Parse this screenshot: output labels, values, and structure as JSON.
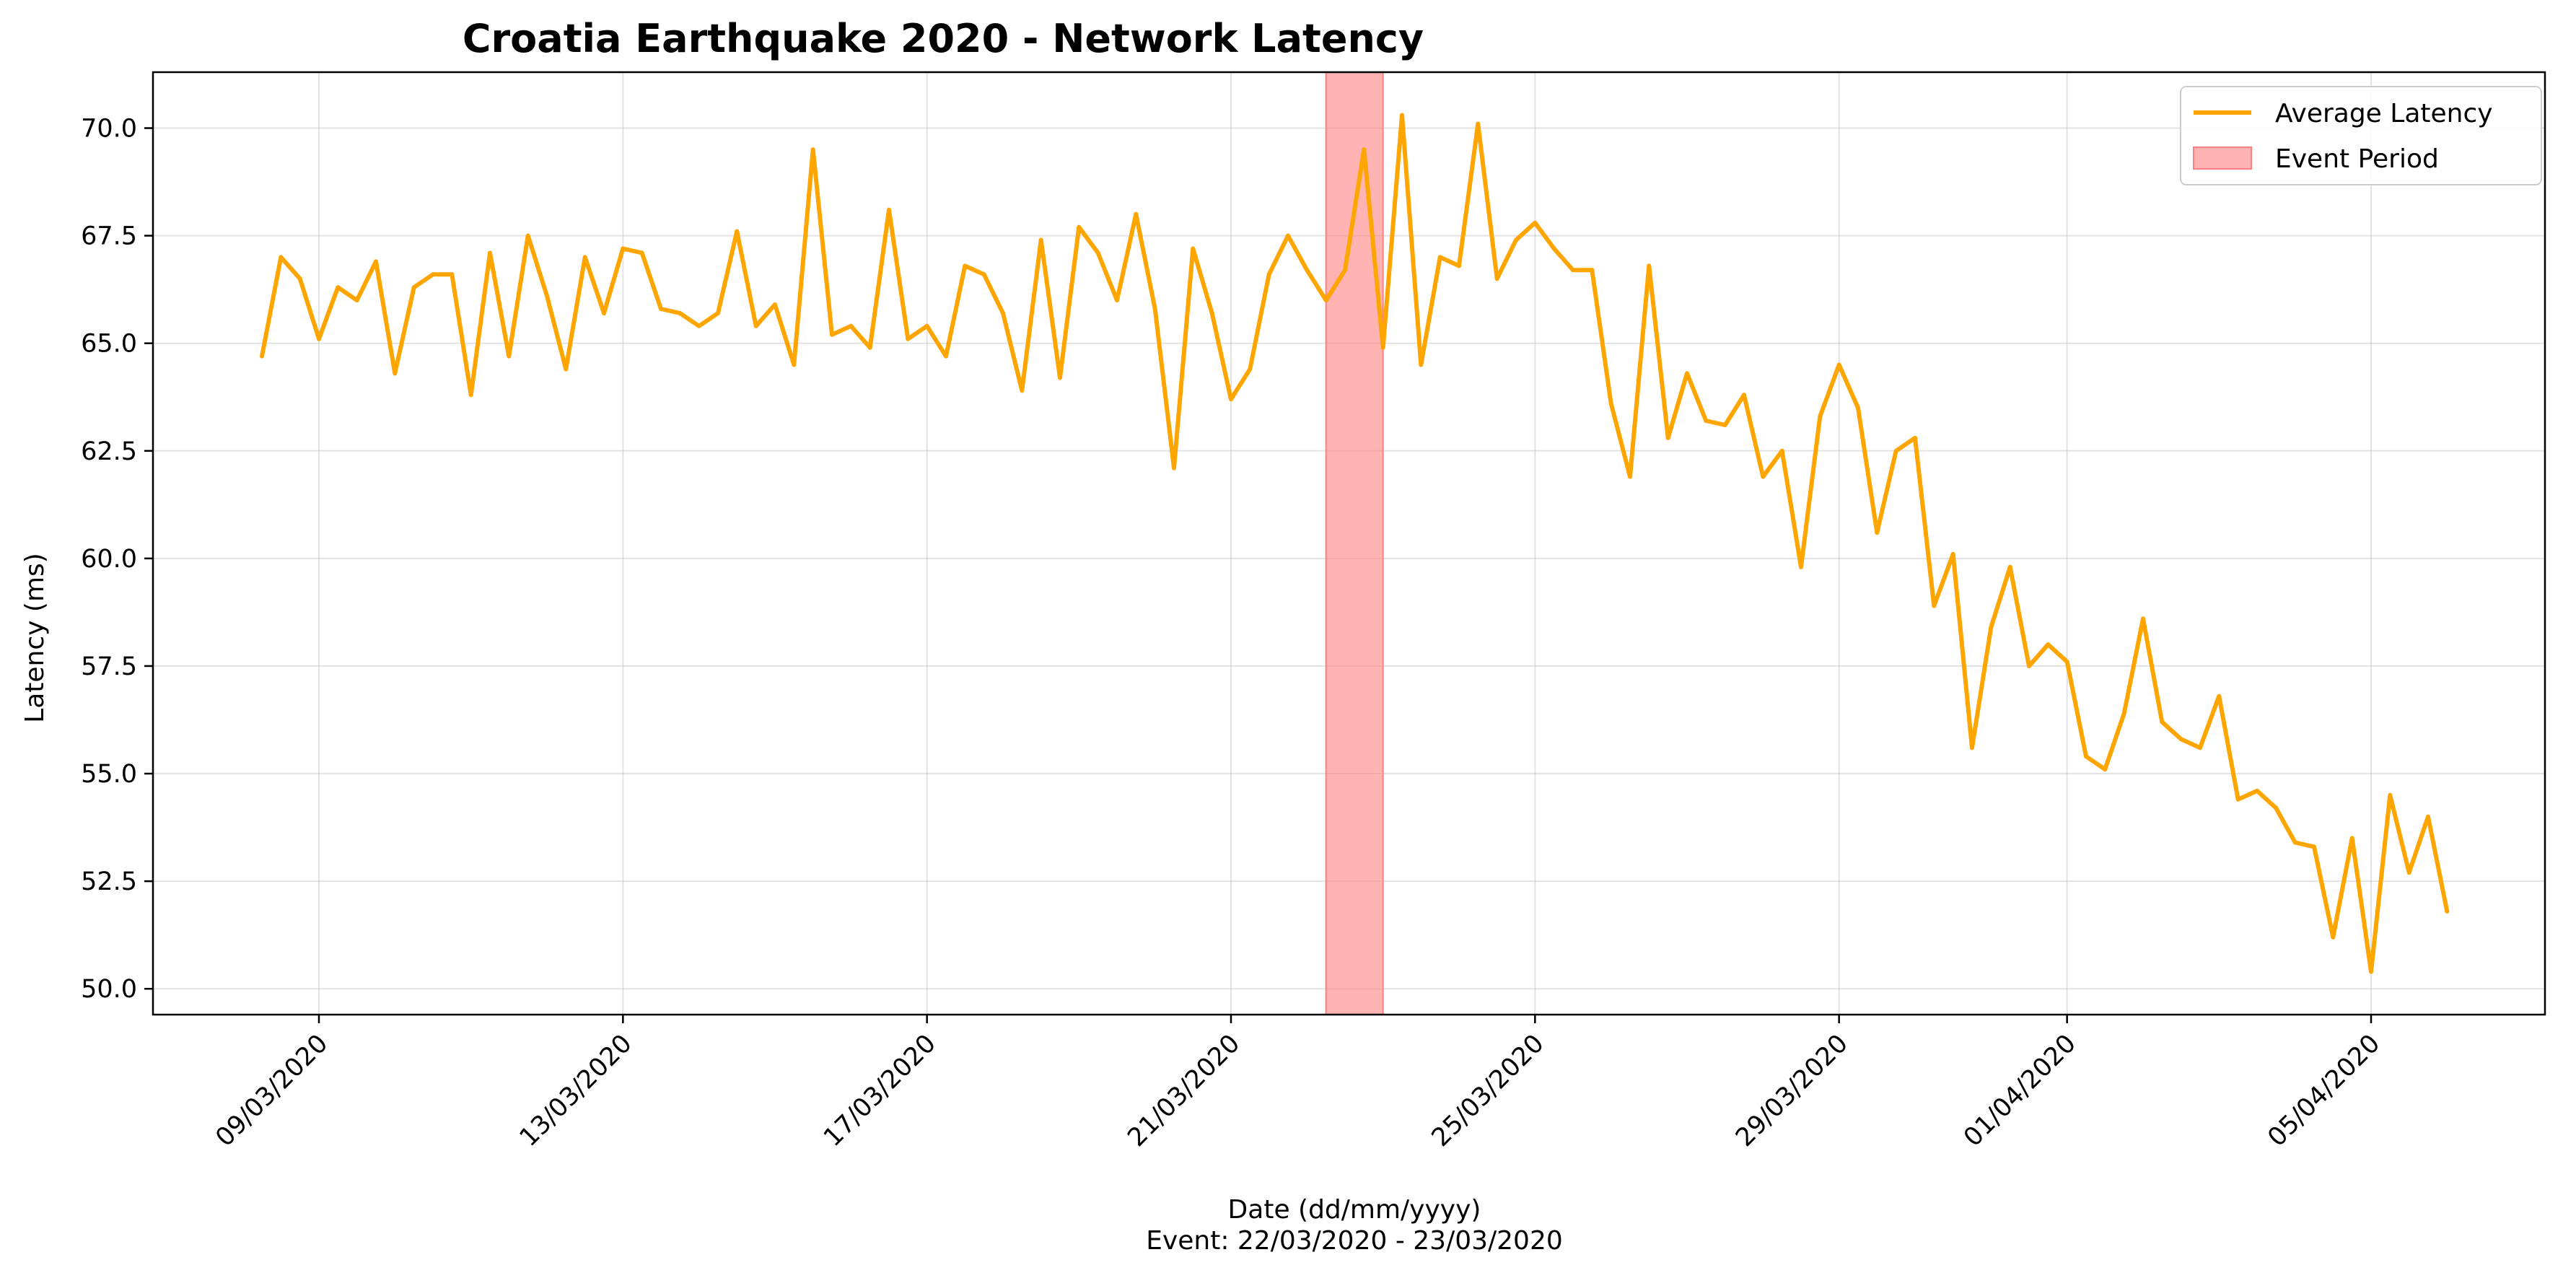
{
  "chart_data": {
    "type": "line",
    "title": "Croatia Earthquake 2020 - Network Latency",
    "xlabel": "Date (dd/mm/yyyy)",
    "xlabel_sub": "Event: 22/03/2020 - 23/03/2020",
    "ylabel": "Latency (ms)",
    "ylim": [
      49.4,
      71.3
    ],
    "y_ticks": [
      "50.0",
      "52.5",
      "55.0",
      "57.5",
      "60.0",
      "62.5",
      "65.0",
      "67.5",
      "70.0"
    ],
    "x_ticks": [
      {
        "label": "09/03/2020",
        "x": "2020-03-09"
      },
      {
        "label": "13/03/2020",
        "x": "2020-03-13"
      },
      {
        "label": "17/03/2020",
        "x": "2020-03-17"
      },
      {
        "label": "21/03/2020",
        "x": "2020-03-21"
      },
      {
        "label": "25/03/2020",
        "x": "2020-03-25"
      },
      {
        "label": "29/03/2020",
        "x": "2020-03-29"
      },
      {
        "label": "01/04/2020",
        "x": "2020-04-01"
      },
      {
        "label": "05/04/2020",
        "x": "2020-04-05"
      }
    ],
    "grid": true,
    "legend_position": "top-right",
    "legend": [
      "Average Latency",
      "Event Period"
    ],
    "colors": {
      "line": "#ffa500",
      "event": "#ff8080"
    },
    "event_period": {
      "start": "2020-03-22 06:00",
      "end": "2020-03-23 00:00"
    },
    "series": [
      {
        "name": "Average Latency",
        "points": [
          [
            "2020-03-08 06:00",
            64.7
          ],
          [
            "2020-03-08 12:00",
            67.0
          ],
          [
            "2020-03-08 18:00",
            66.5
          ],
          [
            "2020-03-09 00:00",
            65.1
          ],
          [
            "2020-03-09 06:00",
            66.3
          ],
          [
            "2020-03-09 12:00",
            66.0
          ],
          [
            "2020-03-09 18:00",
            66.9
          ],
          [
            "2020-03-10 00:00",
            64.3
          ],
          [
            "2020-03-10 06:00",
            66.3
          ],
          [
            "2020-03-10 12:00",
            66.6
          ],
          [
            "2020-03-10 18:00",
            66.6
          ],
          [
            "2020-03-11 00:00",
            63.8
          ],
          [
            "2020-03-11 06:00",
            67.1
          ],
          [
            "2020-03-11 12:00",
            64.7
          ],
          [
            "2020-03-11 18:00",
            67.5
          ],
          [
            "2020-03-12 00:00",
            66.1
          ],
          [
            "2020-03-12 06:00",
            64.4
          ],
          [
            "2020-03-12 12:00",
            67.0
          ],
          [
            "2020-03-12 18:00",
            65.7
          ],
          [
            "2020-03-13 00:00",
            67.2
          ],
          [
            "2020-03-13 06:00",
            67.1
          ],
          [
            "2020-03-13 12:00",
            65.8
          ],
          [
            "2020-03-13 18:00",
            65.7
          ],
          [
            "2020-03-14 00:00",
            65.4
          ],
          [
            "2020-03-14 06:00",
            65.7
          ],
          [
            "2020-03-14 12:00",
            67.6
          ],
          [
            "2020-03-14 18:00",
            65.4
          ],
          [
            "2020-03-15 00:00",
            65.9
          ],
          [
            "2020-03-15 06:00",
            64.5
          ],
          [
            "2020-03-15 12:00",
            69.5
          ],
          [
            "2020-03-15 18:00",
            65.2
          ],
          [
            "2020-03-16 00:00",
            65.4
          ],
          [
            "2020-03-16 06:00",
            64.9
          ],
          [
            "2020-03-16 12:00",
            68.1
          ],
          [
            "2020-03-16 18:00",
            65.1
          ],
          [
            "2020-03-17 00:00",
            65.4
          ],
          [
            "2020-03-17 06:00",
            64.7
          ],
          [
            "2020-03-17 12:00",
            66.8
          ],
          [
            "2020-03-17 18:00",
            66.6
          ],
          [
            "2020-03-18 00:00",
            65.7
          ],
          [
            "2020-03-18 06:00",
            63.9
          ],
          [
            "2020-03-18 12:00",
            67.4
          ],
          [
            "2020-03-18 18:00",
            64.2
          ],
          [
            "2020-03-19 00:00",
            67.7
          ],
          [
            "2020-03-19 06:00",
            67.1
          ],
          [
            "2020-03-19 12:00",
            66.0
          ],
          [
            "2020-03-19 18:00",
            68.0
          ],
          [
            "2020-03-20 00:00",
            65.8
          ],
          [
            "2020-03-20 06:00",
            62.1
          ],
          [
            "2020-03-20 12:00",
            67.2
          ],
          [
            "2020-03-20 18:00",
            65.7
          ],
          [
            "2020-03-21 00:00",
            63.7
          ],
          [
            "2020-03-21 06:00",
            64.4
          ],
          [
            "2020-03-21 12:00",
            66.6
          ],
          [
            "2020-03-21 18:00",
            67.5
          ],
          [
            "2020-03-22 00:00",
            66.7
          ],
          [
            "2020-03-22 06:00",
            66.0
          ],
          [
            "2020-03-22 12:00",
            66.7
          ],
          [
            "2020-03-22 18:00",
            69.5
          ],
          [
            "2020-03-23 00:00",
            64.9
          ],
          [
            "2020-03-23 06:00",
            70.3
          ],
          [
            "2020-03-23 12:00",
            64.5
          ],
          [
            "2020-03-23 18:00",
            67.0
          ],
          [
            "2020-03-24 00:00",
            66.8
          ],
          [
            "2020-03-24 06:00",
            70.1
          ],
          [
            "2020-03-24 12:00",
            66.5
          ],
          [
            "2020-03-24 18:00",
            67.4
          ],
          [
            "2020-03-25 00:00",
            67.8
          ],
          [
            "2020-03-25 06:00",
            67.2
          ],
          [
            "2020-03-25 12:00",
            66.7
          ],
          [
            "2020-03-25 18:00",
            66.7
          ],
          [
            "2020-03-26 00:00",
            63.6
          ],
          [
            "2020-03-26 06:00",
            61.9
          ],
          [
            "2020-03-26 12:00",
            66.8
          ],
          [
            "2020-03-26 18:00",
            62.8
          ],
          [
            "2020-03-27 00:00",
            64.3
          ],
          [
            "2020-03-27 06:00",
            63.2
          ],
          [
            "2020-03-27 12:00",
            63.1
          ],
          [
            "2020-03-27 18:00",
            63.8
          ],
          [
            "2020-03-28 00:00",
            61.9
          ],
          [
            "2020-03-28 06:00",
            62.5
          ],
          [
            "2020-03-28 12:00",
            59.8
          ],
          [
            "2020-03-28 18:00",
            63.3
          ],
          [
            "2020-03-29 00:00",
            64.5
          ],
          [
            "2020-03-29 06:00",
            63.5
          ],
          [
            "2020-03-29 12:00",
            60.6
          ],
          [
            "2020-03-29 18:00",
            62.5
          ],
          [
            "2020-03-30 00:00",
            62.8
          ],
          [
            "2020-03-30 06:00",
            58.9
          ],
          [
            "2020-03-30 12:00",
            60.1
          ],
          [
            "2020-03-30 18:00",
            55.6
          ],
          [
            "2020-03-31 00:00",
            58.4
          ],
          [
            "2020-03-31 06:00",
            59.8
          ],
          [
            "2020-03-31 12:00",
            57.5
          ],
          [
            "2020-03-31 18:00",
            58.0
          ],
          [
            "2020-04-01 00:00",
            57.6
          ],
          [
            "2020-04-01 06:00",
            55.4
          ],
          [
            "2020-04-01 12:00",
            55.1
          ],
          [
            "2020-04-01 18:00",
            56.4
          ],
          [
            "2020-04-02 00:00",
            58.6
          ],
          [
            "2020-04-02 06:00",
            56.2
          ],
          [
            "2020-04-02 12:00",
            55.8
          ],
          [
            "2020-04-02 18:00",
            55.6
          ],
          [
            "2020-04-03 00:00",
            56.8
          ],
          [
            "2020-04-03 06:00",
            54.4
          ],
          [
            "2020-04-03 12:00",
            54.6
          ],
          [
            "2020-04-03 18:00",
            54.2
          ],
          [
            "2020-04-04 00:00",
            53.4
          ],
          [
            "2020-04-04 06:00",
            53.3
          ],
          [
            "2020-04-04 12:00",
            51.2
          ],
          [
            "2020-04-04 18:00",
            53.5
          ],
          [
            "2020-04-05 00:00",
            50.4
          ],
          [
            "2020-04-05 06:00",
            54.5
          ],
          [
            "2020-04-05 12:00",
            52.7
          ],
          [
            "2020-04-05 18:00",
            54.0
          ],
          [
            "2020-04-06 00:00",
            51.8
          ]
        ]
      }
    ]
  }
}
